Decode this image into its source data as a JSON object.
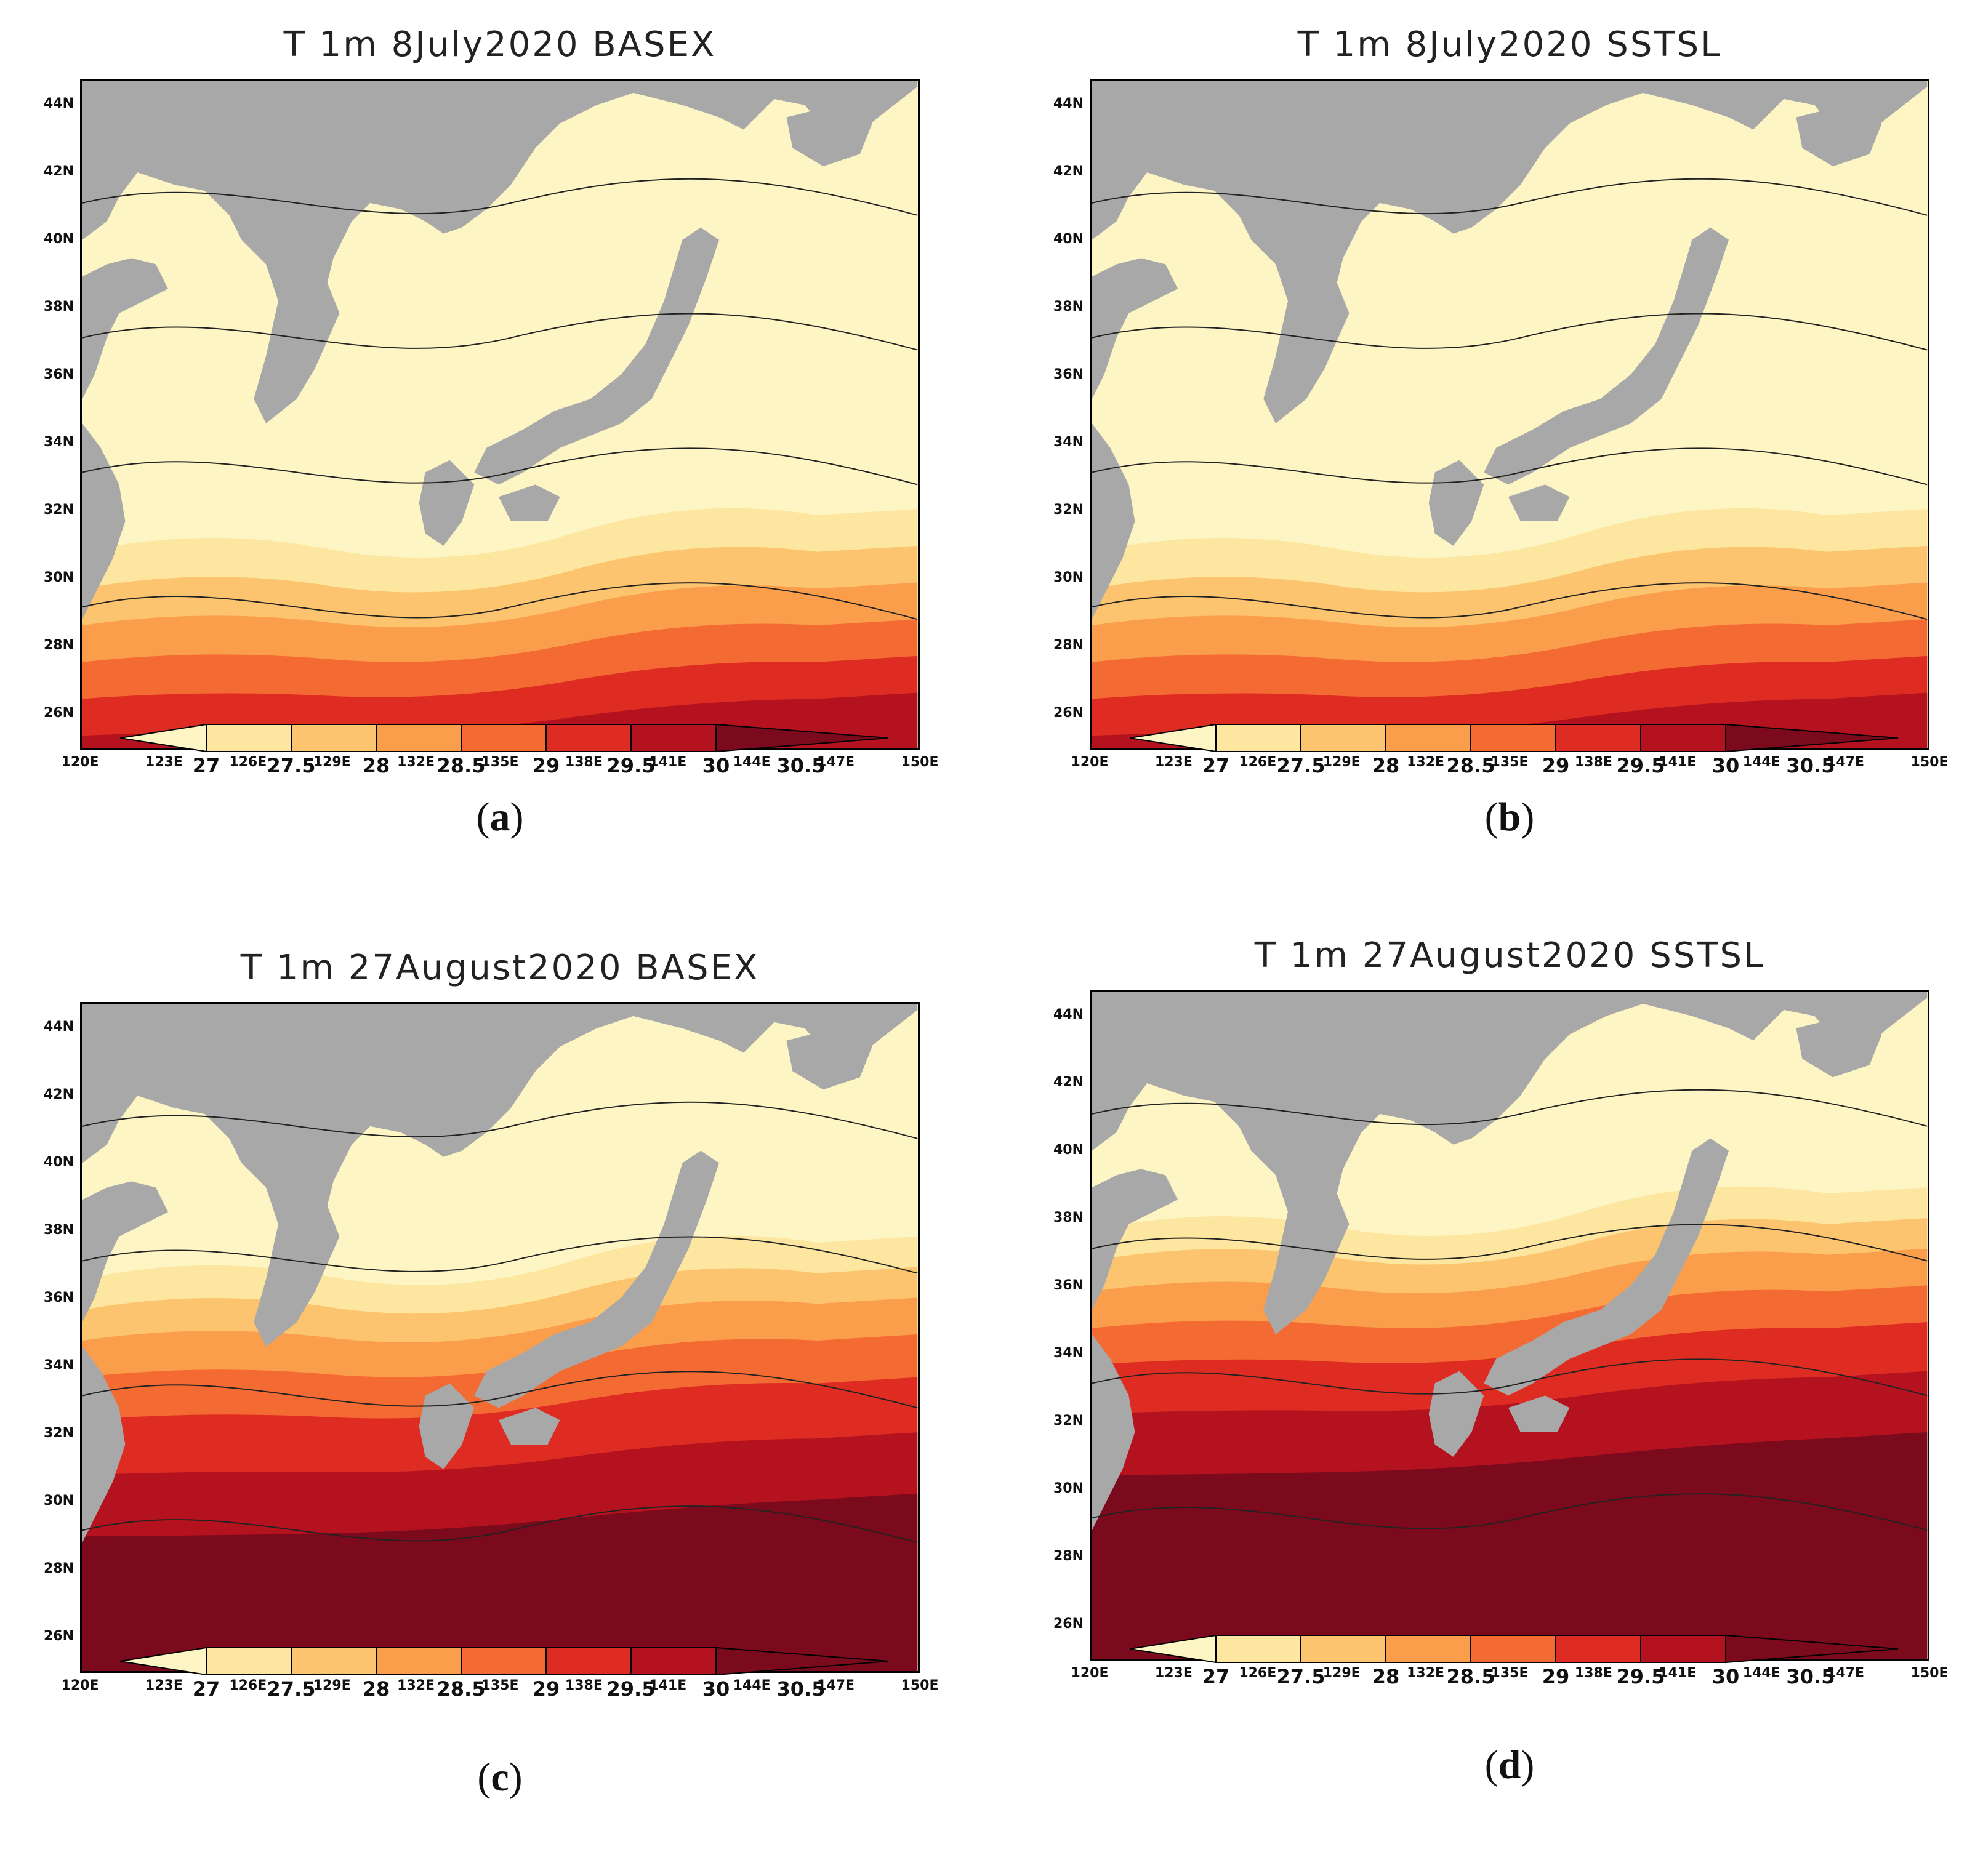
{
  "panels": [
    {
      "title": "T  1m  8July2020  BASEX",
      "label": "a",
      "heat": 0
    },
    {
      "title": "T  1m  8July2020  SSTSL",
      "label": "b",
      "heat": 0
    },
    {
      "title": "T  1m  27August2020  BASEX",
      "label": "c",
      "heat": 1
    },
    {
      "title": "T  1m  27August2020  SSTSL",
      "label": "d",
      "heat": 2
    }
  ],
  "lat_ticks": [
    "44N",
    "42N",
    "40N",
    "38N",
    "36N",
    "34N",
    "32N",
    "30N",
    "28N",
    "26N"
  ],
  "lon_ticks": [
    "120E",
    "123E",
    "126E",
    "129E",
    "132E",
    "135E",
    "138E",
    "141E",
    "144E",
    "147E",
    "150E"
  ],
  "colorbar": {
    "ticks": [
      "27",
      "27.5",
      "28",
      "28.5",
      "29",
      "29.5",
      "30",
      "30.5"
    ],
    "colors": [
      "#fdf5c4",
      "#fde6a0",
      "#fcc46e",
      "#fb9e4c",
      "#f36b32",
      "#df2c22",
      "#b5121f",
      "#7b0a1c"
    ]
  },
  "land_color": "#a8a8a8"
}
